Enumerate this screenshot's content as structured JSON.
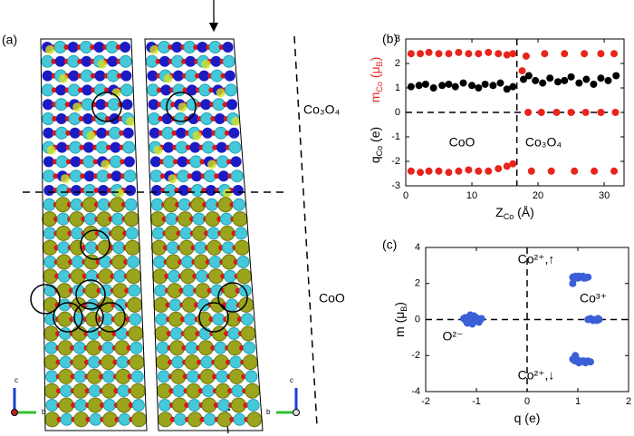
{
  "structure_panel": {
    "panel_label": "(a)",
    "labels": [
      "Co₃O₄",
      "CoO"
    ],
    "axes": [
      "c",
      "b",
      "c",
      "b"
    ]
  },
  "chart_data": [
    {
      "type": "scatter",
      "panel_label": "(b)",
      "x_label": [
        {
          "text": "Z"
        },
        {
          "text": "Co",
          "sub": true
        },
        {
          "text": " (Å)"
        }
      ],
      "y_label": [
        {
          "color": "#000000",
          "parts": [
            {
              "text": "q"
            },
            {
              "text": "Co",
              "sub": true
            },
            {
              "text": " (e)"
            }
          ]
        },
        {
          "color": "#e8251d",
          "parts": [
            {
              "text": "m"
            },
            {
              "text": "Co",
              "sub": true
            },
            {
              "text": " (μ"
            },
            {
              "text": "B",
              "sub": true
            },
            {
              "text": ")"
            }
          ]
        }
      ],
      "annotations": [
        "CoO",
        "Co₃O₄"
      ],
      "xlim": [
        0,
        33
      ],
      "xticks": [
        0,
        10,
        20,
        30
      ],
      "ylim": [
        -3,
        3
      ],
      "yticks": [
        -3,
        -2,
        -1,
        0,
        1,
        2,
        3
      ],
      "vlines": [
        16.8
      ],
      "hlines": [
        0
      ],
      "series": [
        {
          "color": "#000000",
          "x": [
            0.8,
            2,
            3,
            4.2,
            5.5,
            6.5,
            7.5,
            8.7,
            10,
            11,
            12,
            13.2,
            14.3,
            15.3,
            16.2,
            17.8,
            18.6,
            19.6,
            20.7,
            21.8,
            23,
            24,
            25,
            26.2,
            27.3,
            28.4,
            29.5,
            30.6,
            31.8
          ],
          "values": [
            1.05,
            1.1,
            1.15,
            1.0,
            1.1,
            1.15,
            1.05,
            1.2,
            1.1,
            1.0,
            1.15,
            1.1,
            1.2,
            0.95,
            1.05,
            1.35,
            1.5,
            1.3,
            1.2,
            1.4,
            1.25,
            1.3,
            1.45,
            1.2,
            1.35,
            1.15,
            1.4,
            1.3,
            1.5
          ]
        },
        {
          "color": "#e8251d",
          "x": [
            0.8,
            2.2,
            3.5,
            5,
            6.5,
            8,
            9.5,
            11,
            12.5,
            14,
            15.3,
            16.2,
            0.8,
            2.2,
            3.5,
            5,
            6.5,
            8,
            9.5,
            11,
            12.5,
            14,
            15.3,
            16.2,
            17.6,
            18.2,
            21,
            24,
            27,
            29.5,
            31.5,
            18.5,
            20.5,
            22.8,
            25,
            27.2,
            29.5,
            31.7,
            19,
            22,
            25.5,
            28.5,
            31.5
          ],
          "values": [
            2.4,
            2.4,
            2.45,
            2.4,
            2.4,
            2.45,
            2.4,
            2.4,
            2.45,
            2.4,
            2.35,
            2.4,
            -2.4,
            -2.45,
            -2.4,
            -2.4,
            -2.45,
            -2.4,
            -2.35,
            -2.4,
            -2.4,
            -2.3,
            -2.2,
            -2.1,
            1.7,
            2.3,
            2.4,
            2.4,
            2.4,
            2.4,
            2.4,
            0,
            0,
            0,
            0,
            0,
            0,
            0,
            -2.4,
            -2.4,
            -2.4,
            -2.4,
            -2.4
          ]
        }
      ]
    },
    {
      "type": "scatter",
      "panel_label": "(c)",
      "x_label": [
        {
          "text": "q"
        },
        {
          "text": " (e)"
        }
      ],
      "y_label": [
        {
          "color": "#000000",
          "parts": [
            {
              "text": "m"
            },
            {
              "text": " (μ"
            },
            {
              "text": "B",
              "sub": true
            },
            {
              "text": ")"
            }
          ]
        }
      ],
      "annotations": [
        "O²⁻",
        "Co²⁺,↑",
        "Co³⁺",
        "Co²⁺,↓"
      ],
      "xlim": [
        -2,
        2
      ],
      "xticks": [
        -2,
        -1,
        0,
        1,
        2
      ],
      "ylim": [
        -4,
        4
      ],
      "yticks": [
        -4,
        -2,
        0,
        2,
        4
      ],
      "vlines": [
        0
      ],
      "hlines": [
        0
      ],
      "series": [
        {
          "color": "#3a5fd6",
          "x": [
            -1.25,
            -1.2,
            -1.15,
            -1.1,
            -1.05,
            -1.0,
            -0.95,
            -0.9,
            -1.18,
            -1.12,
            -1.05,
            -0.98,
            -1.22,
            -1.08,
            0.9,
            0.95,
            1.0,
            1.05,
            1.1,
            1.15,
            1.2,
            0.92,
            1.02,
            1.12,
            0.9,
            1.2,
            1.25,
            1.3,
            1.35,
            1.4,
            1.42,
            1.28,
            1.38,
            0.9,
            0.95,
            1.0,
            1.05,
            1.1,
            1.15,
            1.2,
            1.25,
            0.92,
            1.02,
            1.12,
            0.95
          ],
          "values": [
            0.05,
            -0.1,
            0.15,
            -0.05,
            0.2,
            0.1,
            -0.15,
            0.05,
            -0.2,
            0.25,
            -0.1,
            0.0,
            0.1,
            -0.25,
            2.35,
            2.4,
            2.3,
            2.35,
            2.4,
            2.3,
            2.35,
            2.25,
            2.4,
            2.3,
            2.0,
            0.0,
            0.05,
            -0.05,
            0.0,
            0.05,
            0.0,
            0.0,
            -0.05,
            -2.2,
            -2.3,
            -2.25,
            -2.35,
            -2.3,
            -2.4,
            -2.3,
            -2.35,
            -2.25,
            -2.4,
            -2.3,
            -2.0
          ]
        }
      ]
    }
  ]
}
